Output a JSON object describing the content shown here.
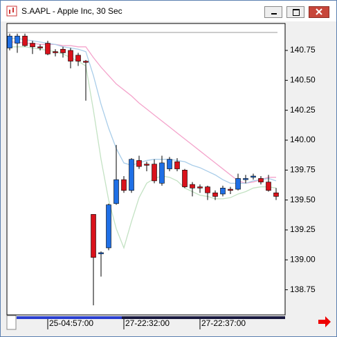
{
  "window": {
    "title": "S.AAPL - Apple Inc, 30 Sec"
  },
  "chart_data": {
    "type": "candlestick",
    "categories": [
      null,
      null,
      null,
      null,
      null,
      "25-04:57:00",
      null,
      null,
      null,
      null,
      null,
      null,
      null,
      null,
      null,
      "27-22:32:00",
      null,
      null,
      null,
      null,
      null,
      null,
      null,
      null,
      null,
      "27-22:37:00",
      null,
      null,
      null,
      null,
      null,
      null,
      null,
      null,
      null,
      null
    ],
    "open": [
      140.77,
      140.81,
      140.87,
      140.81,
      140.78,
      140.81,
      140.74,
      140.76,
      140.75,
      140.71,
      140.66,
      139.38,
      139.05,
      139.1,
      139.47,
      139.67,
      139.58,
      139.83,
      139.8,
      139.8,
      139.64,
      139.76,
      139.82,
      139.75,
      139.63,
      139.61,
      139.61,
      139.56,
      139.55,
      139.59,
      139.59,
      139.67,
      139.69,
      139.68,
      139.65,
      139.56
    ],
    "high": [
      140.89,
      140.89,
      140.89,
      140.83,
      140.8,
      140.83,
      140.76,
      140.78,
      140.77,
      140.73,
      140.67,
      139.38,
      139.07,
      139.47,
      139.96,
      139.7,
      139.85,
      139.87,
      139.82,
      139.84,
      139.87,
      139.86,
      139.85,
      139.76,
      139.65,
      139.63,
      139.62,
      139.58,
      139.62,
      139.61,
      139.72,
      139.71,
      139.72,
      139.7,
      139.71,
      139.6
    ],
    "low": [
      140.75,
      140.73,
      140.78,
      140.72,
      140.75,
      140.71,
      140.7,
      140.69,
      140.6,
      140.62,
      140.33,
      138.62,
      138.86,
      139.08,
      139.46,
      139.56,
      139.56,
      139.76,
      139.74,
      139.64,
      139.62,
      139.74,
      139.74,
      139.6,
      139.53,
      139.56,
      139.5,
      139.5,
      139.53,
      139.55,
      139.58,
      139.64,
      139.67,
      139.63,
      139.57,
      139.5
    ],
    "close": [
      140.87,
      140.87,
      140.79,
      140.78,
      140.77,
      140.72,
      140.73,
      140.73,
      140.66,
      140.66,
      140.65,
      139.02,
      139.06,
      139.46,
      139.67,
      139.58,
      139.84,
      139.78,
      139.79,
      139.66,
      139.81,
      139.84,
      139.76,
      139.61,
      139.6,
      139.6,
      139.56,
      139.53,
      139.6,
      139.58,
      139.68,
      139.68,
      139.7,
      139.65,
      139.58,
      139.53
    ],
    "up_color": "#1f6fe5",
    "down_color": "#d9121b",
    "ma_lines": [
      {
        "color": "#f4a3cb",
        "values": [
          140.82,
          140.82,
          140.81,
          140.81,
          140.8,
          140.8,
          140.8,
          140.79,
          140.79,
          140.78,
          140.78,
          140.69,
          140.61,
          140.54,
          140.47,
          140.42,
          140.37,
          140.31,
          140.26,
          140.21,
          140.16,
          140.11,
          140.06,
          140.01,
          139.96,
          139.91,
          139.86,
          139.81,
          139.76,
          139.71,
          139.66,
          139.64,
          139.65,
          139.67,
          139.69,
          139.69
        ]
      },
      {
        "color": "#a9cde9",
        "values": [
          140.85,
          140.85,
          140.84,
          140.83,
          140.82,
          140.81,
          140.8,
          140.78,
          140.77,
          140.76,
          140.74,
          140.54,
          140.3,
          140.1,
          139.93,
          139.81,
          139.79,
          139.81,
          139.83,
          139.84,
          139.84,
          139.84,
          139.83,
          139.82,
          139.79,
          139.77,
          139.74,
          139.71,
          139.67,
          139.64,
          139.64,
          139.64,
          139.66,
          139.67,
          139.68,
          139.66
        ]
      },
      {
        "color": "#c3e2c3",
        "values": [
          140.78,
          140.78,
          140.78,
          140.77,
          140.76,
          140.75,
          140.74,
          140.72,
          140.69,
          140.66,
          140.62,
          140.25,
          139.84,
          139.5,
          139.26,
          139.1,
          139.32,
          139.52,
          139.64,
          139.68,
          139.7,
          139.69,
          139.66,
          139.6,
          139.57,
          139.54,
          139.53,
          139.51,
          139.51,
          139.52,
          139.55,
          139.57,
          139.6,
          139.61,
          139.61,
          139.6
        ]
      }
    ],
    "reference_line": 140.9,
    "ylim": [
      138.54,
      140.975
    ],
    "yticks": [
      {
        "value": 138.75,
        "label": "138.75"
      },
      {
        "value": 139,
        "label": "139.00"
      },
      139.25,
      {
        "value": 139.5,
        "label": "139.50"
      },
      139.75,
      {
        "value": 140,
        "label": "140.00"
      },
      140.25,
      {
        "value": 140.5,
        "label": "140.50"
      },
      140.75
    ]
  }
}
